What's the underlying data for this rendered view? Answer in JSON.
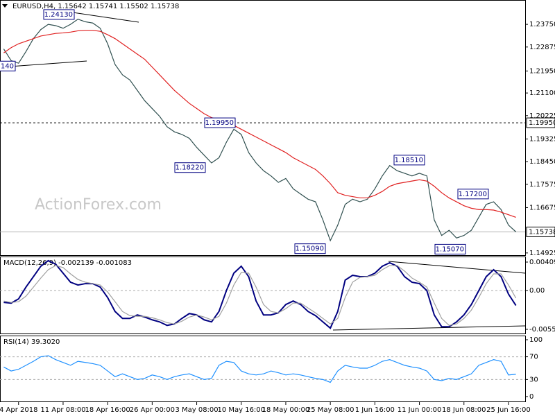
{
  "chart_data": [
    {
      "type": "line",
      "title": "EURUSD,H4, 1.15642 1.15741 1.15502 1.15738",
      "watermark": "ActionForex.com",
      "categories": [
        null,
        null,
        "4 Apr 2018",
        null,
        null,
        null,
        null,
        null,
        "11 Apr 08:00",
        null,
        null,
        null,
        null,
        null,
        "18 Apr 16:00",
        null,
        null,
        null,
        null,
        null,
        "26 Apr 00:00",
        null,
        null,
        null,
        null,
        null,
        "3 May 08:00",
        null,
        null,
        null,
        null,
        null,
        "10 May 16:00",
        null,
        null,
        null,
        null,
        null,
        "18 May 00:00",
        null,
        null,
        null,
        null,
        null,
        "25 May 08:00",
        null,
        null,
        null,
        null,
        null,
        "1 Jun 16:00",
        null,
        null,
        null,
        null,
        null,
        "11 Jun 00:00",
        null,
        null,
        null,
        null,
        null,
        "18 Jun 08:00",
        null,
        null,
        null,
        null,
        null,
        "25 Jun 16:00",
        null
      ],
      "series": [
        {
          "color": "#2f4f4f",
          "values": [
            1.228,
            1.2235,
            1.2225,
            1.227,
            1.232,
            1.2355,
            1.2375,
            1.237,
            1.236,
            1.2375,
            1.2395,
            1.2385,
            1.238,
            1.236,
            1.23,
            1.222,
            1.218,
            1.216,
            1.212,
            1.208,
            1.205,
            1.202,
            1.198,
            1.196,
            1.195,
            1.1935,
            1.19,
            1.187,
            1.184,
            1.186,
            1.192,
            1.197,
            1.195,
            1.188,
            1.184,
            1.181,
            1.179,
            1.1765,
            1.178,
            1.174,
            1.172,
            1.17,
            1.169,
            1.162,
            1.154,
            1.16,
            1.168,
            1.17,
            1.169,
            1.17,
            1.174,
            1.179,
            1.183,
            1.181,
            1.18,
            1.179,
            1.18,
            1.179,
            1.162,
            1.156,
            1.158,
            1.155,
            1.156,
            1.158,
            1.163,
            1.168,
            1.169,
            1.166,
            1.16,
            1.1574
          ]
        },
        {
          "color": "#e02020",
          "values": [
            1.2265,
            1.2285,
            1.23,
            1.231,
            1.232,
            1.233,
            1.2335,
            1.234,
            1.2342,
            1.2345,
            1.235,
            1.2352,
            1.2352,
            1.2348,
            1.2335,
            1.232,
            1.23,
            1.228,
            1.226,
            1.224,
            1.221,
            1.218,
            1.215,
            1.212,
            1.2095,
            1.207,
            1.205,
            1.203,
            1.2015,
            1.2005,
            1.1995,
            1.1985,
            1.197,
            1.1955,
            1.194,
            1.1925,
            1.191,
            1.1895,
            1.188,
            1.186,
            1.1845,
            1.183,
            1.1815,
            1.179,
            1.176,
            1.1725,
            1.1715,
            1.171,
            1.1705,
            1.1705,
            1.1715,
            1.173,
            1.175,
            1.176,
            1.1765,
            1.177,
            1.1775,
            1.177,
            1.175,
            1.1725,
            1.1705,
            1.169,
            1.1675,
            1.1665,
            1.166,
            1.166,
            1.1658,
            1.165,
            1.164,
            1.163
          ]
        }
      ],
      "ylim": [
        1.1484,
        1.2469
      ],
      "yticks": [
        {
          "value": 1.2375,
          "label": "1.23750"
        },
        {
          "value": 1.22875,
          "label": "1.22875"
        },
        {
          "value": 1.2195,
          "label": "1.21950"
        },
        {
          "value": 1.211,
          "label": "1.21100"
        },
        {
          "value": 1.20225,
          "label": "1.20225"
        },
        {
          "value": 1.19325,
          "label": "1.19325"
        },
        {
          "value": 1.1845,
          "label": "1.18450"
        },
        {
          "value": 1.17575,
          "label": "1.17575"
        },
        {
          "value": 1.16675,
          "label": "1.16675"
        },
        {
          "value": 1.14925,
          "label": "1.14925"
        }
      ],
      "hline": {
        "value": 1.1995,
        "label": "1.19950"
      },
      "current": 1.15738,
      "annotations": [
        {
          "value": 1.2413,
          "label": "1.24130"
        },
        {
          "value": 1.2214,
          "label": "140"
        },
        {
          "value": 1.1995,
          "label": "1.19950"
        },
        {
          "value": 1.1822,
          "label": "1.18220"
        },
        {
          "value": 1.1509,
          "label": "1.15090"
        },
        {
          "value": 1.1851,
          "label": "1.18510"
        },
        {
          "value": 1.172,
          "label": "1.17200"
        },
        {
          "value": 1.1507,
          "label": "1.15070"
        }
      ]
    },
    {
      "type": "line",
      "title": "MACD(12,26,9) -0.002139 -0.001083",
      "series": [
        {
          "color": "#000080",
          "values": [
            -0.0017,
            -0.0018,
            -0.0012,
            0.0005,
            0.002,
            0.0035,
            0.0043,
            0.0038,
            0.0025,
            0.0012,
            0.0008,
            0.001,
            0.001,
            0.0005,
            -0.001,
            -0.003,
            -0.004,
            -0.004,
            -0.0035,
            -0.0038,
            -0.0042,
            -0.0045,
            -0.005,
            -0.0048,
            -0.004,
            -0.0033,
            -0.0035,
            -0.0042,
            -0.0045,
            -0.003,
            0.0,
            0.0025,
            0.0035,
            0.002,
            -0.0015,
            -0.0035,
            -0.0035,
            -0.0032,
            -0.002,
            -0.0015,
            -0.002,
            -0.003,
            -0.0036,
            -0.0045,
            -0.0054,
            -0.003,
            0.0015,
            0.0022,
            0.002,
            0.002,
            0.0025,
            0.0035,
            0.004,
            0.0035,
            0.002,
            0.0012,
            0.001,
            0.0,
            -0.0035,
            -0.0052,
            -0.0052,
            -0.0045,
            -0.0035,
            -0.002,
            0.0,
            0.002,
            0.003,
            0.002,
            -0.0005,
            -0.002139
          ]
        },
        {
          "color": "#a0a0a0",
          "values": [
            -0.0015,
            -0.0017,
            -0.0016,
            -0.0008,
            0.0005,
            0.0018,
            0.003,
            0.0036,
            0.0033,
            0.0024,
            0.0016,
            0.0012,
            0.001,
            0.0008,
            -0.0002,
            -0.0016,
            -0.003,
            -0.0036,
            -0.0037,
            -0.0037,
            -0.0039,
            -0.0042,
            -0.0046,
            -0.0048,
            -0.0044,
            -0.0038,
            -0.0035,
            -0.0038,
            -0.0042,
            -0.0037,
            -0.0018,
            0.0008,
            0.0026,
            0.0025,
            0.0005,
            -0.002,
            -0.003,
            -0.0032,
            -0.0026,
            -0.0018,
            -0.0018,
            -0.0025,
            -0.0032,
            -0.004,
            -0.0048,
            -0.004,
            -0.001,
            0.0012,
            0.0019,
            0.002,
            0.0022,
            0.003,
            0.0036,
            0.0036,
            0.0028,
            0.0018,
            0.0012,
            0.0005,
            -0.0018,
            -0.004,
            -0.005,
            -0.0048,
            -0.004,
            -0.0028,
            -0.001,
            0.001,
            0.0024,
            0.0024,
            0.0008,
            -0.001083
          ]
        }
      ],
      "ylim": [
        -0.006265,
        0.004891
      ],
      "yticks": [
        0.004094,
        {
          "value": 0,
          "label": "0.00"
        },
        -0.005568
      ]
    },
    {
      "type": "line",
      "title": "RSI(14) 39.3020",
      "series": [
        {
          "color": "#1e90ff",
          "values": [
            52,
            45,
            48,
            55,
            62,
            70,
            72,
            65,
            60,
            55,
            62,
            60,
            58,
            55,
            45,
            35,
            40,
            35,
            30,
            32,
            38,
            35,
            30,
            35,
            38,
            40,
            35,
            30,
            32,
            55,
            62,
            60,
            45,
            40,
            38,
            40,
            45,
            42,
            38,
            40,
            38,
            35,
            32,
            30,
            25,
            45,
            55,
            52,
            50,
            50,
            55,
            62,
            65,
            60,
            55,
            52,
            50,
            45,
            30,
            28,
            32,
            30,
            35,
            40,
            55,
            60,
            65,
            62,
            38,
            39.302
          ]
        }
      ],
      "ylim": [
        -9.8,
        107.3
      ],
      "yticks": [
        100,
        70,
        30,
        0
      ],
      "dashed_levels": [
        70,
        30
      ]
    }
  ]
}
